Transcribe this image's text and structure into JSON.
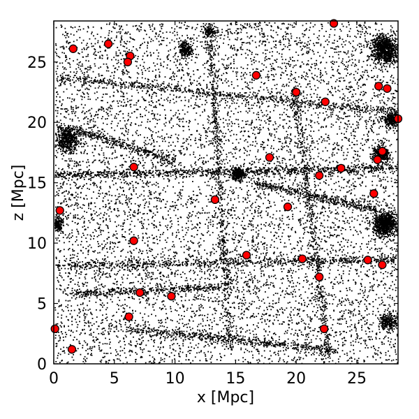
{
  "chart_data": {
    "type": "scatter",
    "title": "",
    "xlabel": "x [Mpc]",
    "ylabel": "z [Mpc]",
    "xlim": [
      0,
      28.4
    ],
    "ylim": [
      0,
      28.4
    ],
    "xticks": [
      0,
      5,
      10,
      15,
      20,
      25
    ],
    "yticks": [
      0,
      5,
      10,
      15,
      20,
      25
    ],
    "grid": false,
    "colors": {
      "background_points": "#000000",
      "highlight_fill": "#ff0000",
      "highlight_edge": "#000000"
    },
    "series": [
      {
        "role": "highlighted-points",
        "points": [
          [
            23.1,
            28.2
          ],
          [
            1.6,
            26.1
          ],
          [
            4.5,
            26.5
          ],
          [
            6.3,
            25.5
          ],
          [
            6.1,
            25.0
          ],
          [
            16.7,
            23.9
          ],
          [
            20.0,
            22.5
          ],
          [
            22.4,
            21.7
          ],
          [
            26.8,
            23.0
          ],
          [
            27.5,
            22.8
          ],
          [
            28.4,
            20.3
          ],
          [
            17.8,
            17.1
          ],
          [
            27.1,
            17.6
          ],
          [
            26.7,
            16.9
          ],
          [
            6.6,
            16.3
          ],
          [
            21.9,
            15.6
          ],
          [
            23.7,
            16.2
          ],
          [
            26.4,
            14.1
          ],
          [
            13.3,
            13.6
          ],
          [
            19.3,
            13.0
          ],
          [
            0.5,
            12.7
          ],
          [
            6.6,
            10.2
          ],
          [
            15.9,
            9.0
          ],
          [
            20.5,
            8.7
          ],
          [
            25.9,
            8.6
          ],
          [
            27.1,
            8.2
          ],
          [
            21.9,
            7.2
          ],
          [
            7.1,
            5.9
          ],
          [
            9.7,
            5.6
          ],
          [
            6.2,
            3.9
          ],
          [
            0.1,
            2.9
          ],
          [
            22.3,
            2.9
          ],
          [
            1.5,
            1.2
          ]
        ]
      }
    ]
  }
}
